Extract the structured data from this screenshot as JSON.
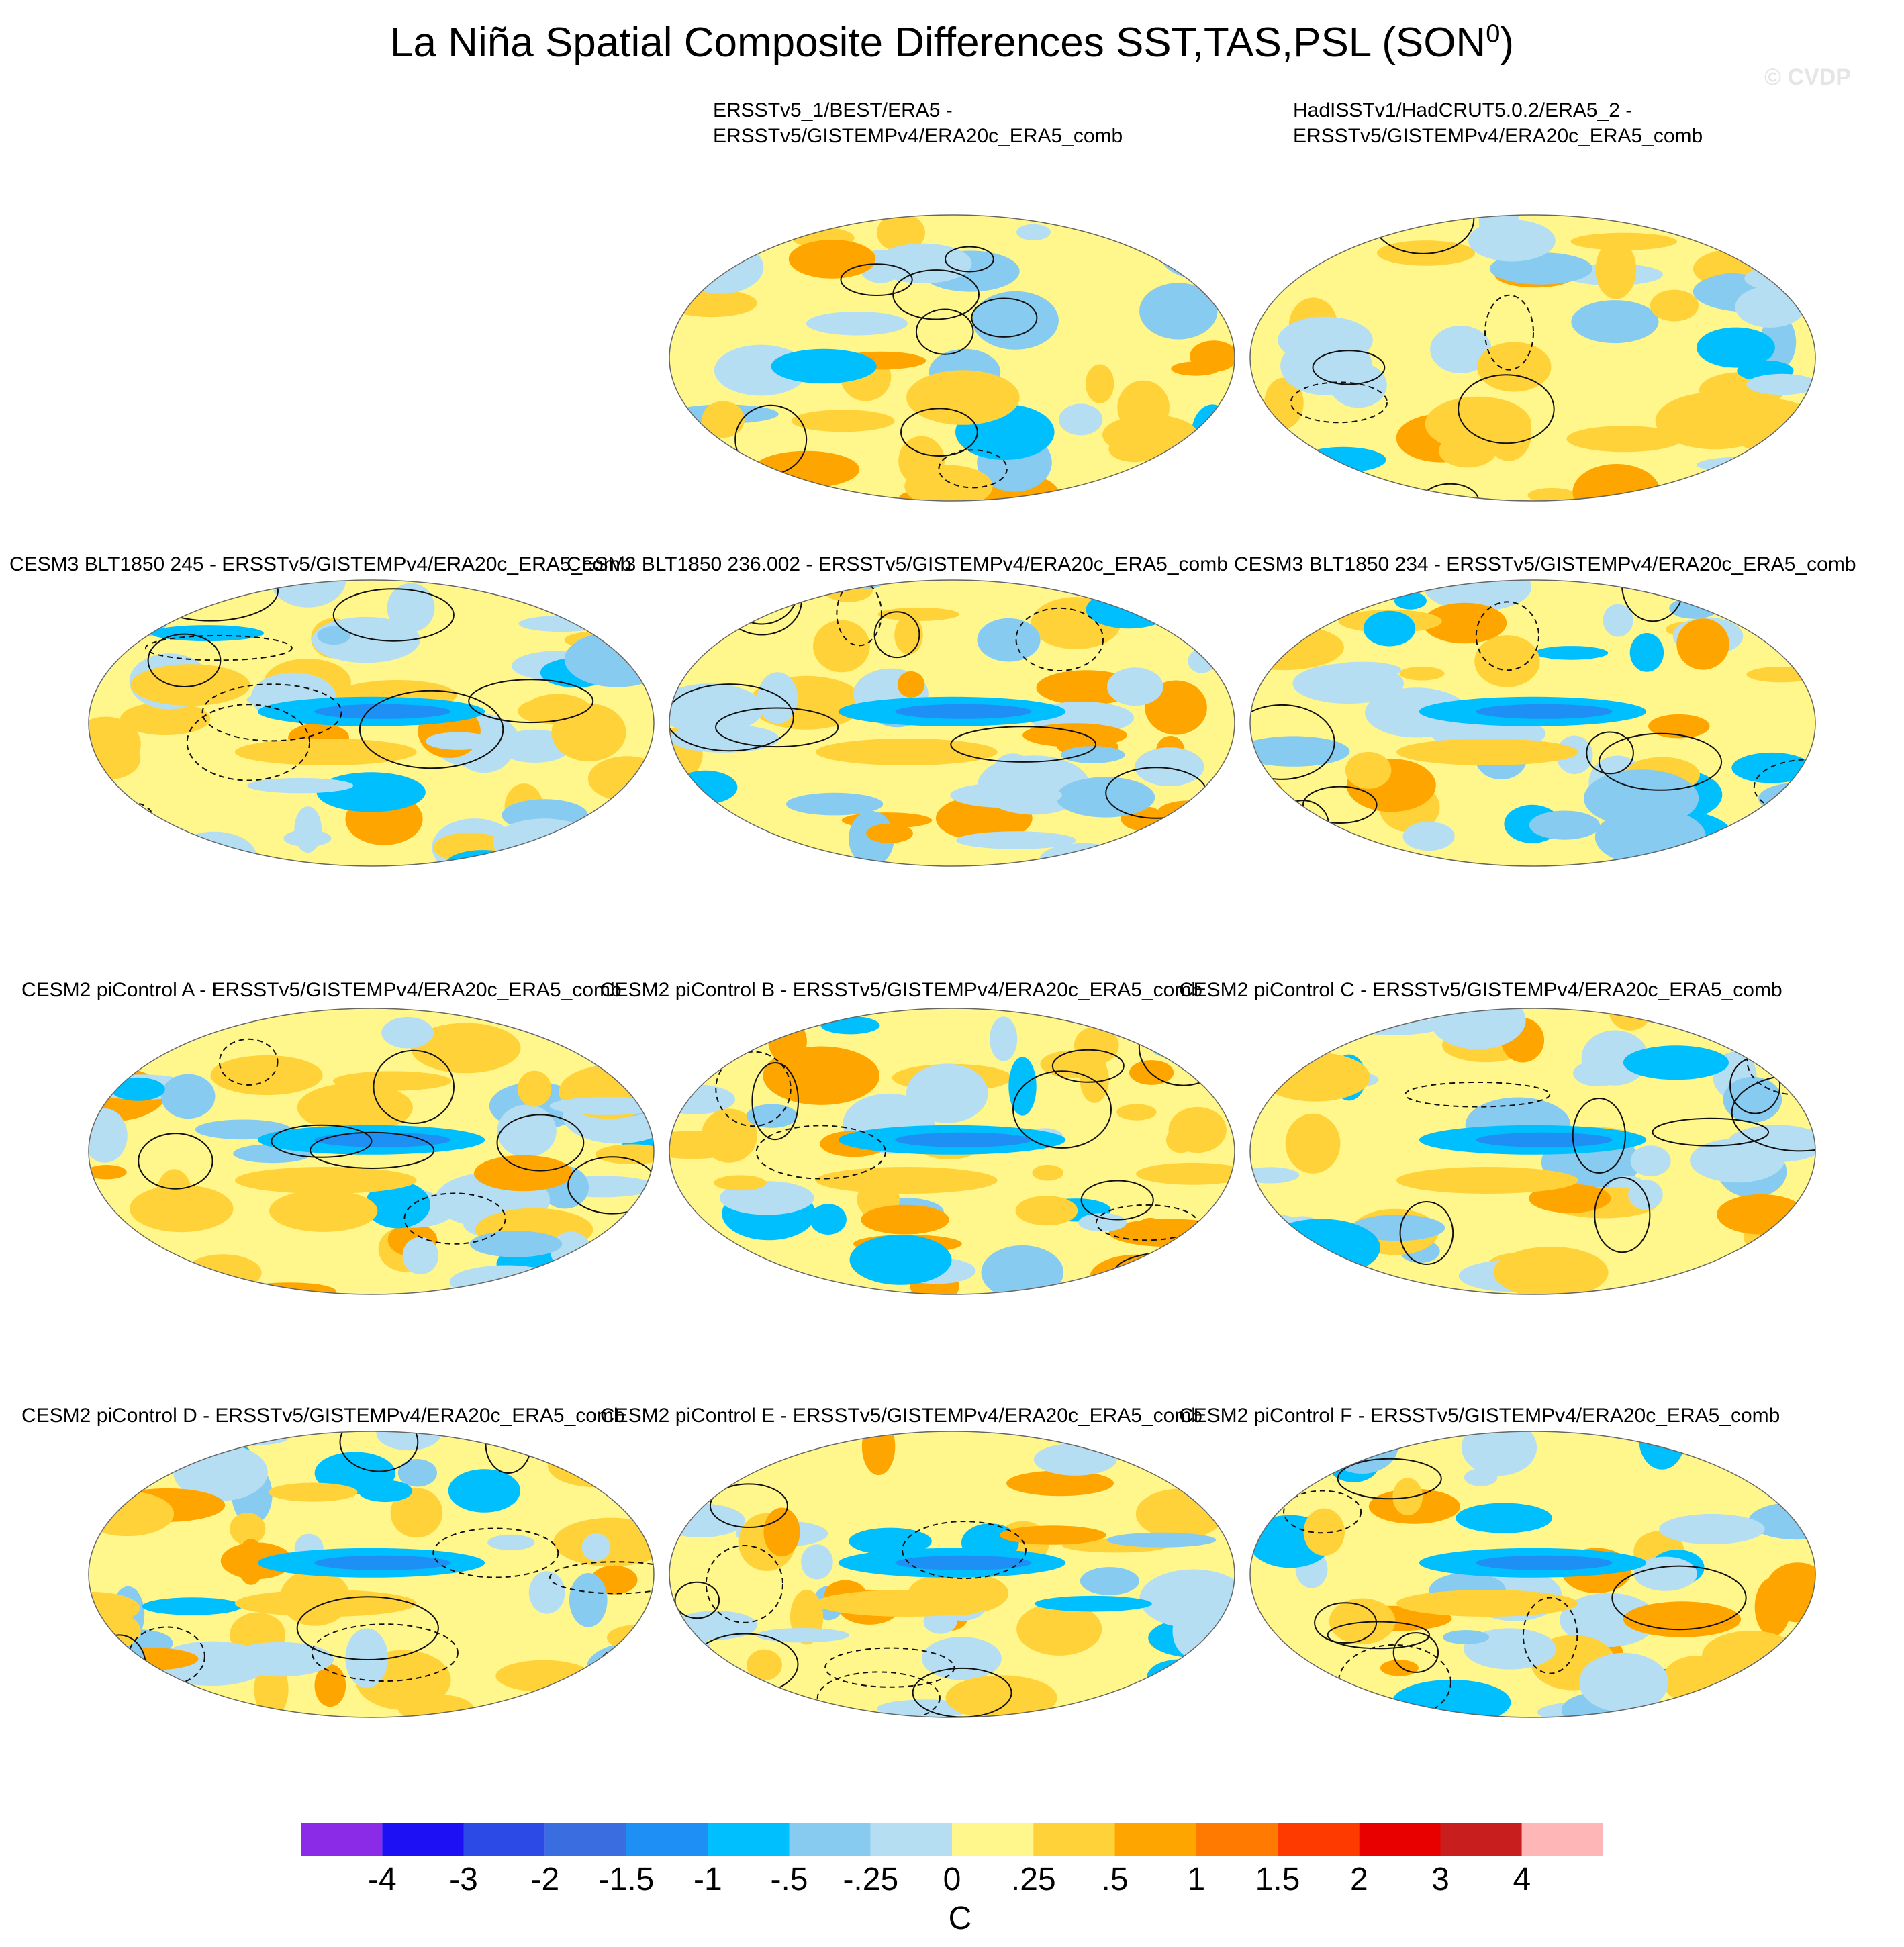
{
  "page": {
    "title": "La Niña Spatial Composite Differences SST,TAS,PSL (SON",
    "title_superscript": "0",
    "title_close": ")",
    "watermark": "© CVDP"
  },
  "chart_data": {
    "type": "heatmap",
    "title": "La Niña Spatial Composite Differences SST,TAS,PSL (SON⁰)",
    "panels": [
      {
        "label": [
          "ERSSTv5_1/BEST/ERA5 -",
          "ERSSTv5/GISTEMPv4/ERA20c_ERA5_comb"
        ]
      },
      {
        "label": [
          "HadISSTv1/HadCRUT5.0.2/ERA5_2 -",
          "ERSSTv5/GISTEMPv4/ERA20c_ERA5_comb"
        ]
      },
      {
        "label": [
          "CESM3 BLT1850 245 - ERSSTv5/GISTEMPv4/ERA20c_ERA5_comb"
        ]
      },
      {
        "label": [
          "CESM3 BLT1850 236.002 - ERSSTv5/GISTEMPv4/ERA20c_ERA5_comb"
        ]
      },
      {
        "label": [
          "CESM3 BLT1850 234 - ERSSTv5/GISTEMPv4/ERA20c_ERA5_comb"
        ]
      },
      {
        "label": [
          "CESM2 piControl A - ERSSTv5/GISTEMPv4/ERA20c_ERA5_comb"
        ]
      },
      {
        "label": [
          "CESM2 piControl B - ERSSTv5/GISTEMPv4/ERA20c_ERA5_comb"
        ]
      },
      {
        "label": [
          "CESM2 piControl C - ERSSTv5/GISTEMPv4/ERA20c_ERA5_comb"
        ]
      },
      {
        "label": [
          "CESM2 piControl D - ERSSTv5/GISTEMPv4/ERA20c_ERA5_comb"
        ]
      },
      {
        "label": [
          "CESM2 piControl E - ERSSTv5/GISTEMPv4/ERA20c_ERA5_comb"
        ]
      },
      {
        "label": [
          "CESM2 piControl F - ERSSTv5/GISTEMPv4/ERA20c_ERA5_comb"
        ]
      }
    ],
    "colorbar": {
      "ticks": [
        "-4",
        "-3",
        "-2",
        "-1.5",
        "-1",
        "-.5",
        "-.25",
        "0",
        ".25",
        ".5",
        "1",
        "1.5",
        "2",
        "3",
        "4"
      ],
      "colors": [
        "#8b2be8",
        "#1e10f5",
        "#2c4ae6",
        "#3a6de0",
        "#1e90f5",
        "#00bfff",
        "#87cbf0",
        "#b6def2",
        "#fff68c",
        "#ffd23a",
        "#ffa500",
        "#ff7a00",
        "#ff3a00",
        "#e80000",
        "#c81e1e",
        "#ffb6b6"
      ],
      "units": "C"
    }
  }
}
